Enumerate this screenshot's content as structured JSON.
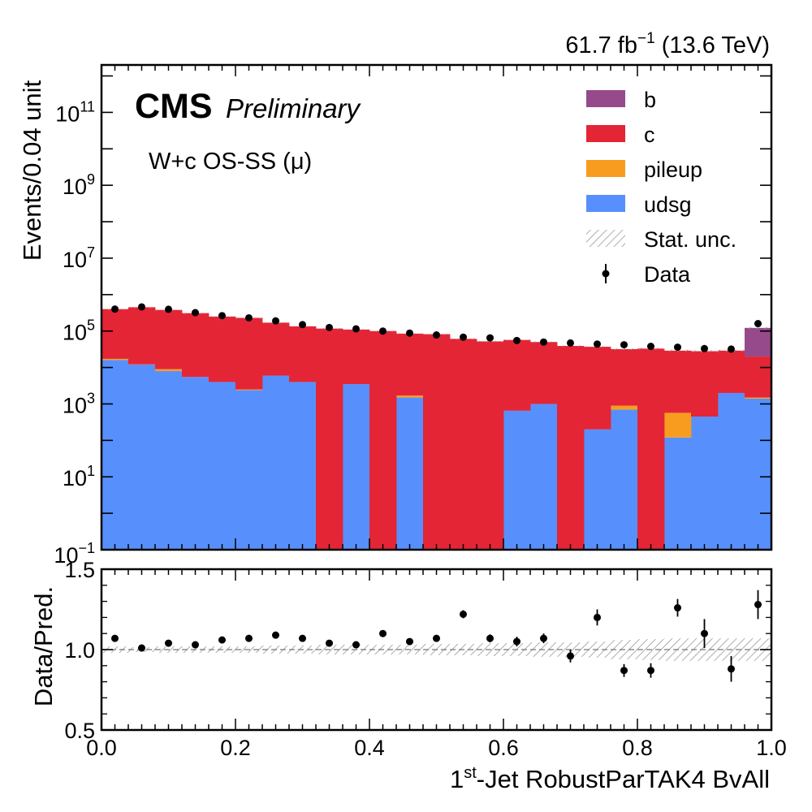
{
  "header": {
    "lumi_value": "61.7 fb",
    "lumi_exponent": "−1",
    "energy": " (13.6 TeV)"
  },
  "cms": {
    "label": "CMS",
    "sub_label": "Preliminary",
    "channel": "W+c OS-SS (μ)"
  },
  "axes": {
    "ylabel_main": "Events/0.04 unit",
    "ylabel_ratio": "Data/Pred.",
    "xlabel_pre": "1",
    "xlabel_sup": "st",
    "xlabel_post": "-Jet RobustParTAK4 BvAll"
  },
  "legend": [
    {
      "name": "b",
      "kind": "box",
      "color": "#964a8b"
    },
    {
      "name": "c",
      "kind": "box",
      "color": "#e42536"
    },
    {
      "name": "pileup",
      "kind": "box",
      "color": "#f89c20"
    },
    {
      "name": "udsg",
      "kind": "box",
      "color": "#5790fc"
    },
    {
      "name": "Stat. unc.",
      "kind": "hatch",
      "color": "#999999"
    },
    {
      "name": "Data",
      "kind": "marker",
      "color": "#000000"
    }
  ],
  "chart_data": [
    {
      "type": "bar",
      "stacked": true,
      "scale": "log",
      "ylabel": "Events/0.04 unit",
      "bin_edges": [
        0.0,
        0.04,
        0.08,
        0.12,
        0.16,
        0.2,
        0.24,
        0.28,
        0.32,
        0.36,
        0.4,
        0.44,
        0.48,
        0.52,
        0.56,
        0.6,
        0.64,
        0.68,
        0.72,
        0.76,
        0.8,
        0.84,
        0.88,
        0.92,
        0.96,
        1.0
      ],
      "xlim": [
        0,
        1
      ],
      "ylim": [
        0.1,
        2000000000000.0
      ],
      "y_ticks": [
        {
          "label": "10",
          "sup": "−1",
          "v": 0.1
        },
        {
          "label": "10",
          "sup": "1",
          "v": 10
        },
        {
          "label": "10",
          "sup": "3",
          "v": 1000
        },
        {
          "label": "10",
          "sup": "5",
          "v": 100000
        },
        {
          "label": "10",
          "sup": "7",
          "v": 10000000
        },
        {
          "label": "10",
          "sup": "9",
          "v": 1000000000
        },
        {
          "label": "10",
          "sup": "11",
          "v": 100000000000
        }
      ],
      "series": [
        {
          "name": "udsg",
          "color": "#5790fc",
          "values": [
            16000,
            12000,
            8000,
            5500,
            4000,
            2400,
            6000,
            4000,
            0,
            3500,
            0,
            1500,
            0,
            0,
            0,
            650,
            1000,
            0,
            200,
            700,
            0,
            120,
            450,
            2000,
            1400
          ]
        },
        {
          "name": "pileup",
          "color": "#f89c20",
          "values": [
            1300,
            200,
            1000,
            0,
            0,
            100,
            0,
            0,
            0,
            0,
            0,
            200,
            0,
            0,
            0,
            0,
            0,
            0,
            0,
            200,
            0,
            450,
            0,
            0,
            100
          ]
        },
        {
          "name": "c",
          "color": "#e42536",
          "values": [
            382700,
            437800,
            371000,
            304500,
            246000,
            227500,
            164000,
            131000,
            117000,
            106500,
            100000,
            83300,
            82000,
            61000,
            52000,
            56350,
            49000,
            39000,
            36800,
            31000,
            33000,
            28430,
            27550,
            27000,
            18500
          ]
        },
        {
          "name": "b",
          "color": "#964a8b",
          "values": [
            0,
            0,
            0,
            0,
            0,
            0,
            0,
            0,
            0,
            0,
            0,
            0,
            0,
            0,
            0,
            0,
            0,
            0,
            0,
            0,
            0,
            0,
            0,
            0,
            102000
          ]
        }
      ],
      "data_points": [
        {
          "x": 0.02,
          "y": 400000
        },
        {
          "x": 0.06,
          "y": 460000
        },
        {
          "x": 0.1,
          "y": 395000
        },
        {
          "x": 0.14,
          "y": 320000
        },
        {
          "x": 0.18,
          "y": 265000
        },
        {
          "x": 0.22,
          "y": 230000
        },
        {
          "x": 0.26,
          "y": 190000
        },
        {
          "x": 0.3,
          "y": 150000
        },
        {
          "x": 0.34,
          "y": 125000
        },
        {
          "x": 0.38,
          "y": 115000
        },
        {
          "x": 0.42,
          "y": 100000
        },
        {
          "x": 0.46,
          "y": 88000
        },
        {
          "x": 0.5,
          "y": 78000
        },
        {
          "x": 0.54,
          "y": 68000
        },
        {
          "x": 0.58,
          "y": 65000
        },
        {
          "x": 0.62,
          "y": 55000
        },
        {
          "x": 0.66,
          "y": 50000
        },
        {
          "x": 0.7,
          "y": 47000
        },
        {
          "x": 0.74,
          "y": 44000
        },
        {
          "x": 0.78,
          "y": 42000
        },
        {
          "x": 0.82,
          "y": 38000
        },
        {
          "x": 0.86,
          "y": 36000
        },
        {
          "x": 0.9,
          "y": 33000
        },
        {
          "x": 0.94,
          "y": 32000
        },
        {
          "x": 0.98,
          "y": 160000
        }
      ]
    },
    {
      "type": "scatter",
      "ylabel": "Data/Pred.",
      "xlabel": "1st-Jet RobustParTAK4 BvAll",
      "xlim": [
        0,
        1
      ],
      "ylim": [
        0.5,
        1.5
      ],
      "x_ticks": [
        "0.0",
        "0.2",
        "0.4",
        "0.6",
        "0.8",
        "1.0"
      ],
      "y_ticks": [
        "0.5",
        "1.0",
        "1.5"
      ],
      "reference_line": 1.0,
      "points": [
        {
          "x": 0.02,
          "y": 1.07,
          "err": 0.01
        },
        {
          "x": 0.06,
          "y": 1.01,
          "err": 0.01
        },
        {
          "x": 0.1,
          "y": 1.04,
          "err": 0.01
        },
        {
          "x": 0.14,
          "y": 1.03,
          "err": 0.01
        },
        {
          "x": 0.18,
          "y": 1.06,
          "err": 0.01
        },
        {
          "x": 0.22,
          "y": 1.07,
          "err": 0.01
        },
        {
          "x": 0.26,
          "y": 1.09,
          "err": 0.01
        },
        {
          "x": 0.3,
          "y": 1.07,
          "err": 0.01
        },
        {
          "x": 0.34,
          "y": 1.04,
          "err": 0.01
        },
        {
          "x": 0.38,
          "y": 1.03,
          "err": 0.015
        },
        {
          "x": 0.42,
          "y": 1.1,
          "err": 0.015
        },
        {
          "x": 0.46,
          "y": 1.05,
          "err": 0.015
        },
        {
          "x": 0.5,
          "y": 1.07,
          "err": 0.02
        },
        {
          "x": 0.54,
          "y": 1.22,
          "err": 0.025
        },
        {
          "x": 0.58,
          "y": 1.07,
          "err": 0.025
        },
        {
          "x": 0.62,
          "y": 1.05,
          "err": 0.03
        },
        {
          "x": 0.66,
          "y": 1.07,
          "err": 0.03
        },
        {
          "x": 0.7,
          "y": 0.96,
          "err": 0.04
        },
        {
          "x": 0.74,
          "y": 1.2,
          "err": 0.05
        },
        {
          "x": 0.78,
          "y": 0.87,
          "err": 0.04
        },
        {
          "x": 0.82,
          "y": 0.87,
          "err": 0.045
        },
        {
          "x": 0.86,
          "y": 1.26,
          "err": 0.055
        },
        {
          "x": 0.9,
          "y": 1.1,
          "err": 0.09
        },
        {
          "x": 0.94,
          "y": 0.88,
          "err": 0.08
        },
        {
          "x": 0.98,
          "y": 1.28,
          "err": 0.09
        }
      ],
      "stat_unc": [
        0.02,
        0.015,
        0.02,
        0.02,
        0.02,
        0.02,
        0.025,
        0.025,
        0.03,
        0.03,
        0.03,
        0.03,
        0.035,
        0.035,
        0.04,
        0.04,
        0.045,
        0.045,
        0.05,
        0.06,
        0.065,
        0.07,
        0.07,
        0.07,
        0.07
      ]
    }
  ]
}
